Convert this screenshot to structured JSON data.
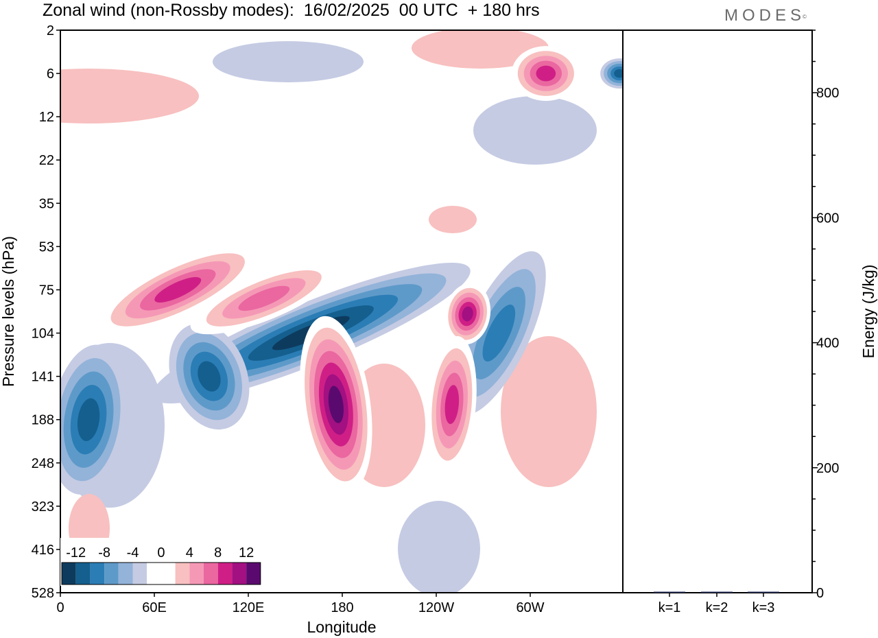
{
  "header": {
    "title": "Zonal wind (non-Rossby modes):  16/02/2025  00 UTC  + 180 hrs",
    "brand": "MODES",
    "brand_mark": "©"
  },
  "chart_data": [
    {
      "type": "heatmap",
      "xlabel": "Longitude",
      "ylabel": "Pressure levels (hPa)",
      "x_ticks": [
        "0",
        "60E",
        "120E",
        "180",
        "120W",
        "60W"
      ],
      "y_ticks": [
        "2",
        "6",
        "12",
        "22",
        "35",
        "53",
        "75",
        "104",
        "141",
        "188",
        "248",
        "323",
        "416",
        "528"
      ],
      "legend": {
        "placement": "bottom-left",
        "tick_labels": [
          "-12",
          "-8",
          "-4",
          "0",
          "4",
          "8",
          "12"
        ],
        "levels": [
          -14,
          -12,
          -10,
          -8,
          -6,
          -4,
          -2,
          2,
          4,
          6,
          8,
          10,
          12,
          14
        ],
        "colors": [
          "#0d3b5e",
          "#145f8e",
          "#2b7db5",
          "#5e9ac9",
          "#93b3d9",
          "#c5cbe3",
          "#ffffff",
          "#ffffff",
          "#f8c0c0",
          "#f598b6",
          "#ea67a0",
          "#cf1f86",
          "#a21082",
          "#5a0a6e"
        ]
      },
      "features": [
        {
          "kind": "negative",
          "lon": 18,
          "level": 188,
          "value": -10
        },
        {
          "kind": "negative",
          "lon": 160,
          "level": 104,
          "value": -12
        },
        {
          "kind": "negative",
          "lon": 95,
          "level": 141,
          "value": -10
        },
        {
          "kind": "negative",
          "lon": 280,
          "level": 104,
          "value": -8
        },
        {
          "kind": "negative",
          "lon": 357,
          "level": 6,
          "value": -10
        },
        {
          "kind": "positive",
          "lon": 176,
          "level": 170,
          "value": 14
        },
        {
          "kind": "positive",
          "lon": 260,
          "level": 90,
          "value": 12
        },
        {
          "kind": "positive",
          "lon": 75,
          "level": 75,
          "value": 10
        },
        {
          "kind": "positive",
          "lon": 130,
          "level": 80,
          "value": 8
        },
        {
          "kind": "positive",
          "lon": 250,
          "level": 170,
          "value": 10
        },
        {
          "kind": "positive",
          "lon": 310,
          "level": 6,
          "value": 10
        }
      ]
    },
    {
      "type": "bar",
      "categories": [
        "k=1",
        "k=2",
        "k=3"
      ],
      "values": [
        1.5,
        1,
        1.5
      ],
      "ylabel": "Energy (J/kg)",
      "ylim": [
        0,
        900
      ],
      "y_ticks": [
        0,
        200,
        400,
        600,
        800
      ],
      "bar_color": "#1f2a56"
    }
  ]
}
